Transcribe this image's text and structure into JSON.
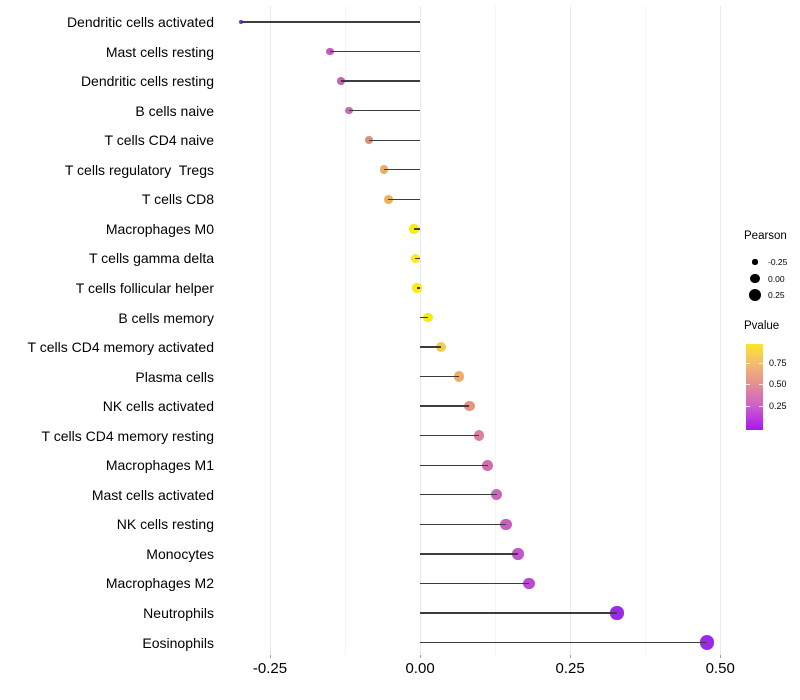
{
  "chart_data": {
    "type": "lollipop",
    "orientation": "horizontal",
    "title": "",
    "xlabel": "",
    "ylabel": "",
    "xlim": [
      -0.33,
      0.533
    ],
    "baseline": 0,
    "grid": "vertical major+minor, no horizontal",
    "x_ticks": [
      -0.25,
      0.0,
      0.25,
      0.5
    ],
    "x_tick_labels": [
      "-0.25",
      "0.00",
      "0.25",
      "0.50"
    ],
    "x_minor_ticks": [
      -0.125,
      0.125,
      0.375
    ],
    "categories": [
      "Dendritic cells activated",
      "Mast cells resting",
      "Dendritic cells resting",
      "B cells naive",
      "T cells CD4 naive",
      "T cells regulatory  Tregs",
      "T cells CD8",
      "Macrophages M0",
      "T cells gamma delta",
      "T cells follicular helper",
      "B cells memory",
      "T cells CD4 memory activated",
      "Plasma cells",
      "NK cells activated",
      "T cells CD4 memory resting",
      "Macrophages M1",
      "Mast cells activated",
      "NK cells resting",
      "Monocytes",
      "Macrophages M2",
      "Neutrophils",
      "Eosinophils"
    ],
    "series": [
      {
        "name": "Pearson",
        "values": [
          -0.298,
          -0.15,
          -0.132,
          -0.118,
          -0.085,
          -0.06,
          -0.053,
          -0.01,
          -0.008,
          -0.005,
          0.013,
          0.035,
          0.065,
          0.082,
          0.098,
          0.113,
          0.128,
          0.143,
          0.163,
          0.182,
          0.328,
          0.478
        ],
        "point_colors": [
          "#8829E6",
          "#C558BC",
          "#C562B9",
          "#C96DAE",
          "#DE8B81",
          "#EBAC63",
          "#ECB25C",
          "#F7EC13",
          "#F7EC13",
          "#F7EC13",
          "#F6E81E",
          "#F0CE50",
          "#EEAD66",
          "#E59384",
          "#DB809B",
          "#CF6DB0",
          "#CD65B3",
          "#C75FBF",
          "#C256CB",
          "#BA4AD2",
          "#9B29E8",
          "#9C27EC"
        ]
      }
    ],
    "stem_color": "#3d3d3d",
    "legend": {
      "size": {
        "title": "Pearson",
        "items": [
          {
            "label": "-0.25",
            "value": -0.25
          },
          {
            "label": "0.00",
            "value": 0.0
          },
          {
            "label": "0.25",
            "value": 0.25
          }
        ],
        "dot_color": "#000000"
      },
      "color": {
        "title": "Pvalue",
        "tick_labels": [
          "0.75",
          "0.50",
          "0.25"
        ],
        "tick_positions_pct": [
          22,
          46.5,
          72
        ],
        "gradient_stops": [
          {
            "color": "#FBE723",
            "pct": 0
          },
          {
            "color": "#F3BC72",
            "pct": 22
          },
          {
            "color": "#E59090",
            "pct": 46.5
          },
          {
            "color": "#CF5FCB",
            "pct": 72
          },
          {
            "color": "#A916F0",
            "pct": 100
          }
        ]
      }
    }
  }
}
